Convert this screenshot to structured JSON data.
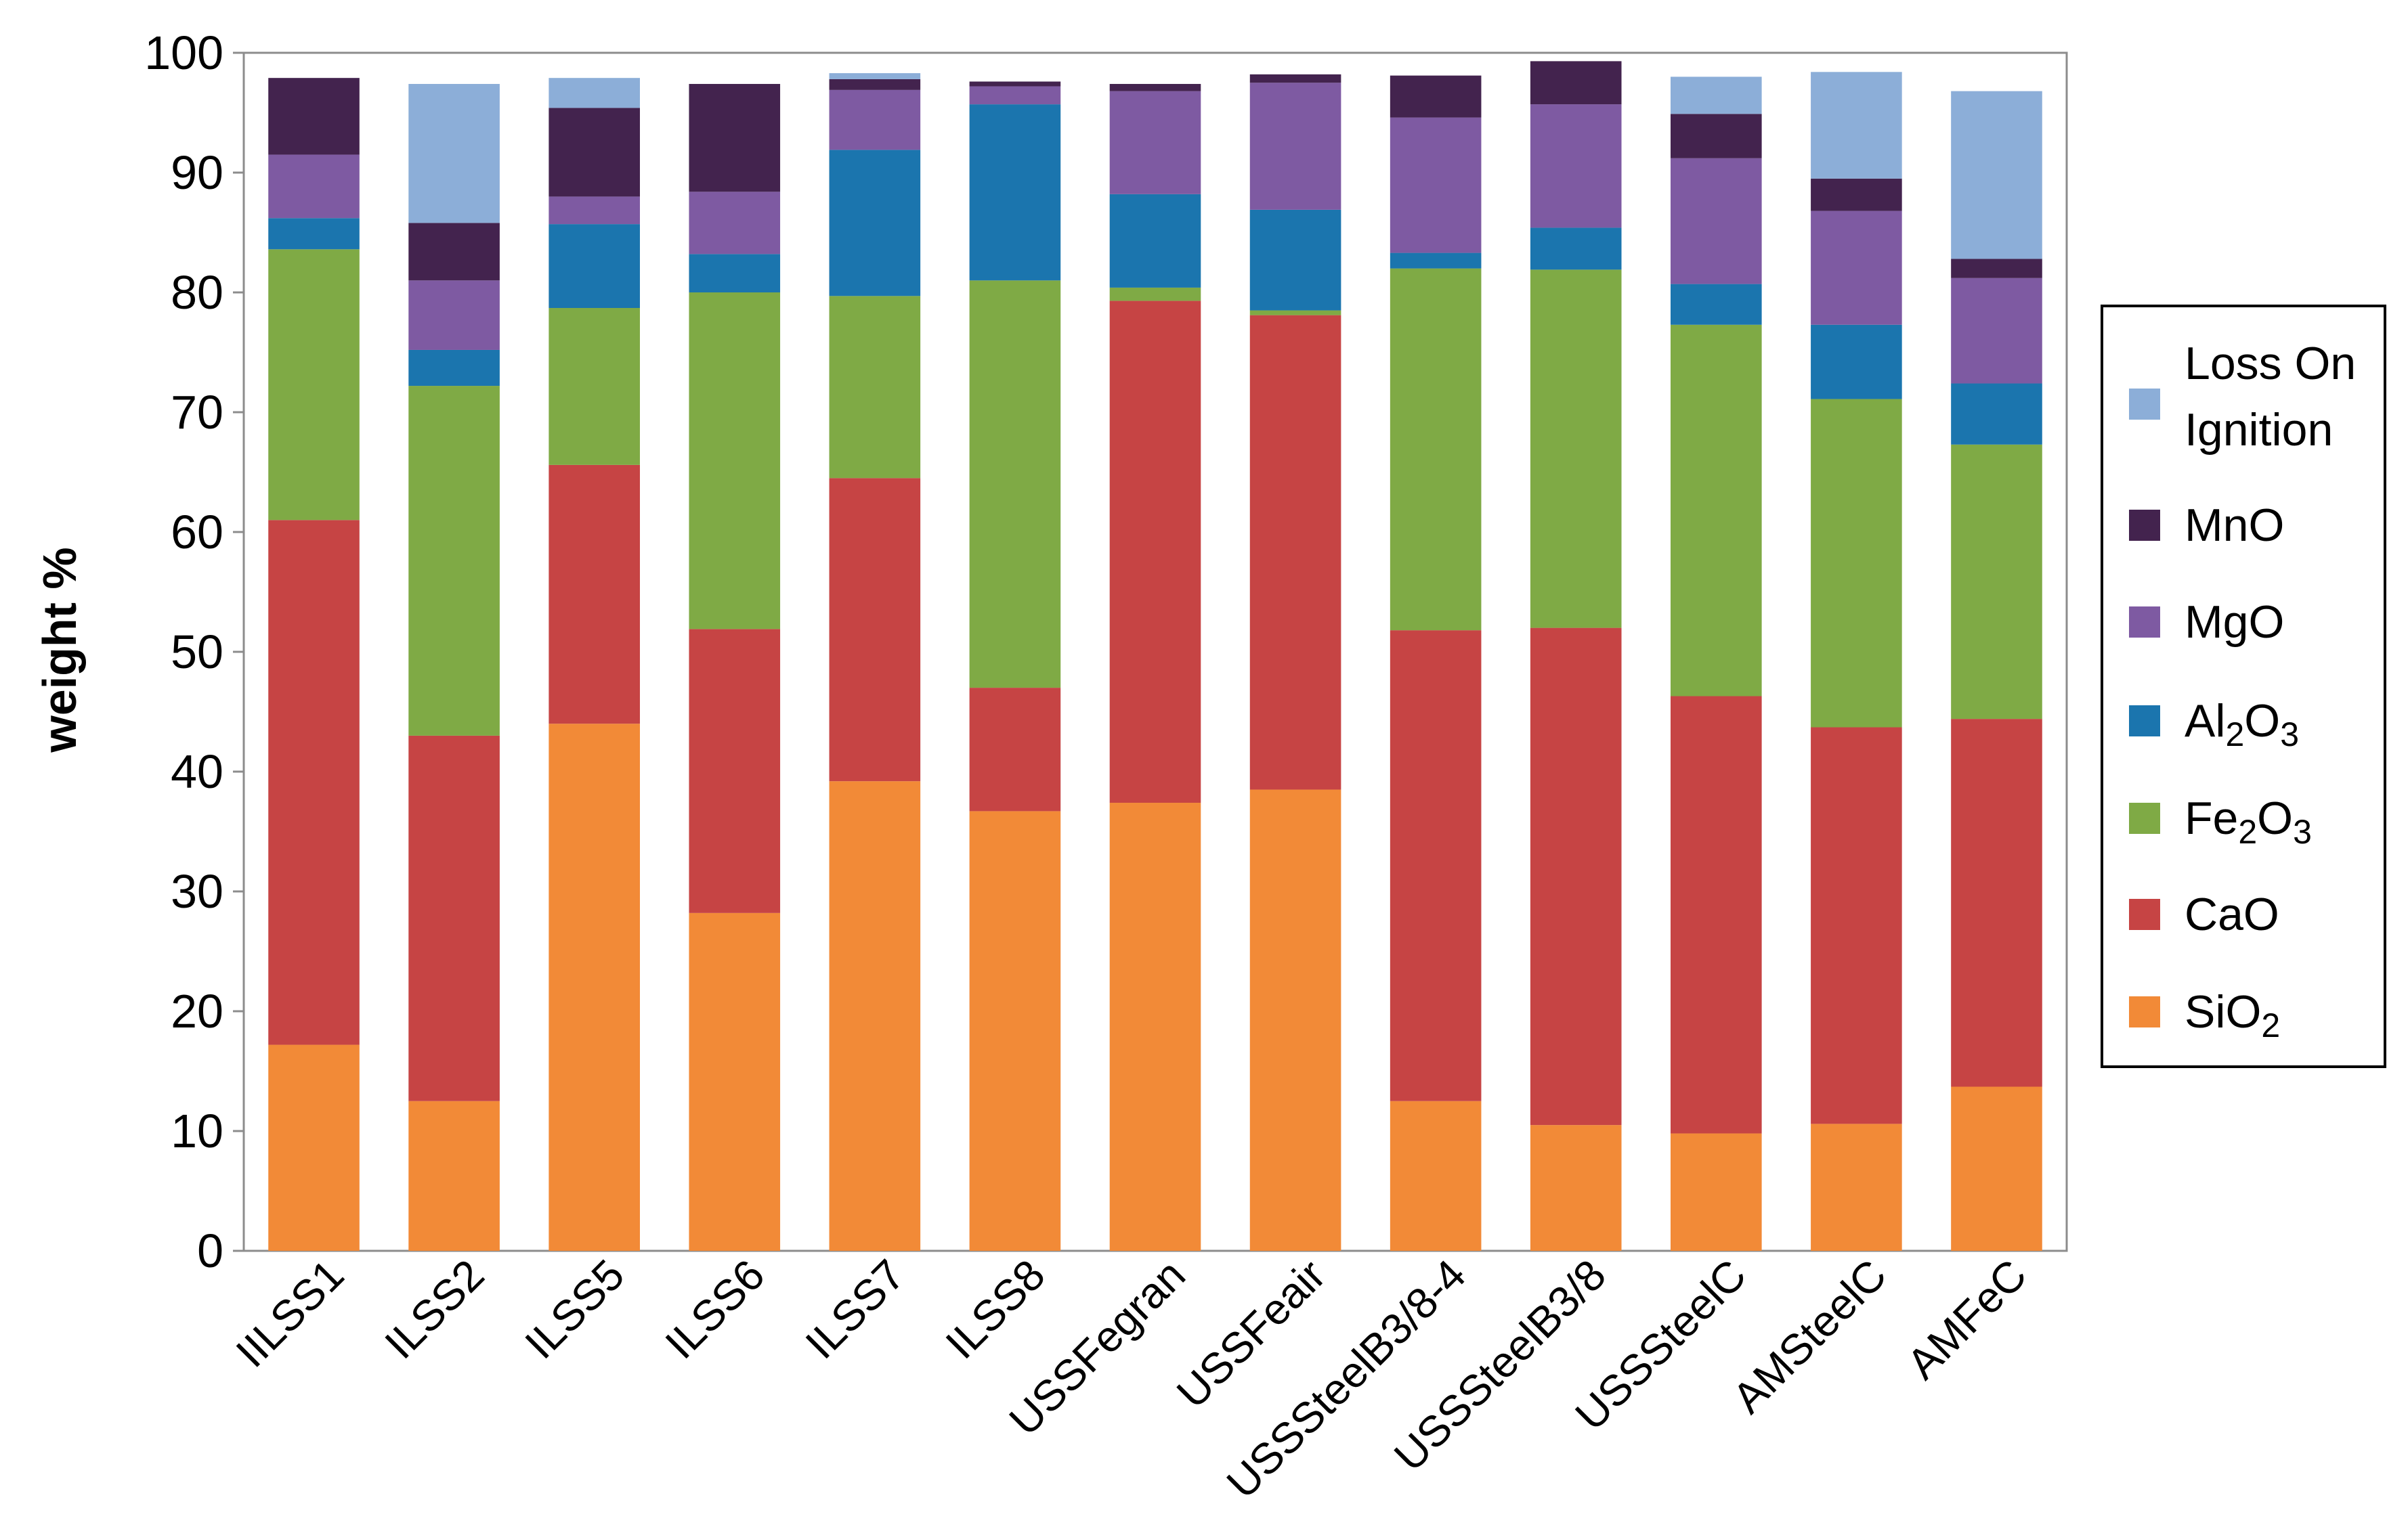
{
  "chart_data": {
    "type": "bar",
    "stacked": true,
    "title": "",
    "xlabel": "",
    "ylabel": "weight %",
    "ylim": [
      0,
      100
    ],
    "yticks": [
      0,
      10,
      20,
      30,
      40,
      50,
      60,
      70,
      80,
      90,
      100
    ],
    "grid": false,
    "legend_position": "right",
    "categories": [
      "IILSS1",
      "ILSS2",
      "ILSS5",
      "ILSS6",
      "ILSS7",
      "ILSS8",
      "USSFegran",
      "USSFeair",
      "USSSteelB3/8-4",
      "USSSteelB3/8",
      "USSSteelC",
      "AMSteelC",
      "AMFeC"
    ],
    "series": [
      {
        "name": "SiO2",
        "label_base": "SiO",
        "label_sub": "2",
        "color": "#F28A37",
        "values": [
          17.2,
          12.5,
          44.0,
          28.2,
          39.2,
          36.7,
          37.4,
          38.5,
          12.5,
          10.5,
          9.8,
          10.6,
          13.7
        ]
      },
      {
        "name": "CaO",
        "label_base": "CaO",
        "label_sub": "",
        "color": "#C64444",
        "values": [
          43.8,
          30.5,
          21.6,
          23.7,
          25.3,
          10.3,
          41.9,
          39.6,
          39.3,
          41.5,
          36.5,
          33.1,
          30.7
        ]
      },
      {
        "name": "Fe2O3",
        "label_base": "Fe",
        "label_sub": "2",
        "label_tail": "O",
        "label_sub2": "3",
        "color": "#7FAA45",
        "values": [
          22.6,
          29.2,
          13.1,
          28.1,
          15.2,
          34.0,
          1.1,
          0.4,
          30.2,
          29.9,
          31.0,
          27.4,
          22.9
        ]
      },
      {
        "name": "Al2O3",
        "label_base": "Al",
        "label_sub": "2",
        "label_tail": "O",
        "label_sub2": "3",
        "color": "#1B75AE",
        "values": [
          2.6,
          3.0,
          7.0,
          3.2,
          12.2,
          14.7,
          7.8,
          8.4,
          1.3,
          3.5,
          3.4,
          6.2,
          5.1
        ]
      },
      {
        "name": "MgO",
        "label_base": "MgO",
        "label_sub": "",
        "color": "#7E5AA2",
        "values": [
          5.3,
          5.8,
          2.3,
          5.2,
          5.0,
          1.5,
          8.6,
          10.6,
          11.3,
          10.3,
          10.5,
          9.5,
          8.8
        ]
      },
      {
        "name": "MnO",
        "label_base": "MnO",
        "label_sub": "",
        "color": "#43234E",
        "values": [
          6.4,
          4.8,
          7.4,
          9.0,
          0.9,
          0.4,
          0.6,
          0.7,
          3.5,
          3.6,
          3.7,
          2.7,
          1.6
        ]
      },
      {
        "name": "Loss On Ignition",
        "label_base": "Loss On",
        "label_line2": "Ignition",
        "color": "#8CAED8",
        "values": [
          0.0,
          11.6,
          2.5,
          0.0,
          0.5,
          0.0,
          0.0,
          0.0,
          0.0,
          0.0,
          3.1,
          8.9,
          14.0
        ]
      }
    ]
  }
}
